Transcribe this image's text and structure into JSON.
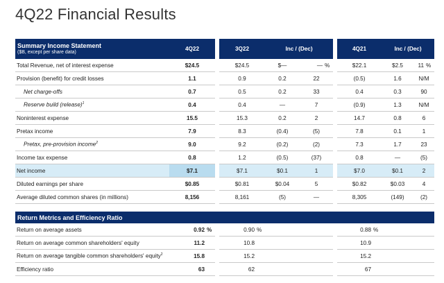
{
  "title": "4Q22 Financial Results",
  "income": {
    "header": {
      "label": "Summary Income Statement",
      "sublabel": "($B, except per share data)",
      "col_4q22": "4Q22",
      "col_3q22": "3Q22",
      "col_inc1": "Inc / (Dec)",
      "col_4q21": "4Q21",
      "col_inc2": "Inc / (Dec)"
    },
    "rows": [
      {
        "label": "Total Revenue, net of interest expense",
        "v1": "$24.5",
        "v2": "$24.5",
        "d1": "$—",
        "p1": "—",
        "pct1": "%",
        "v3": "$22.1",
        "d2": "$2.5",
        "p2": "11",
        "pct2": "%"
      },
      {
        "label": "Provision (benefit) for credit losses",
        "v1": "1.1",
        "v2": "0.9",
        "d1": "0.2",
        "p1": "22",
        "v3": "(0.5)",
        "d2": "1.6",
        "p2": "N/M"
      },
      {
        "label": "Net charge-offs",
        "v1": "0.7",
        "v2": "0.5",
        "d1": "0.2",
        "p1": "33",
        "v3": "0.4",
        "d2": "0.3",
        "p2": "90"
      },
      {
        "label": "Reserve build (release)",
        "sup": "1",
        "v1": "0.4",
        "v2": "0.4",
        "d1": "—",
        "p1": "7",
        "v3": "(0.9)",
        "d2": "1.3",
        "p2": "N/M"
      },
      {
        "label": "Noninterest expense",
        "v1": "15.5",
        "v2": "15.3",
        "d1": "0.2",
        "p1": "2",
        "v3": "14.7",
        "d2": "0.8",
        "p2": "6"
      },
      {
        "label": "Pretax income",
        "v1": "7.9",
        "v2": "8.3",
        "d1": "(0.4)",
        "p1": "(5)",
        "v3": "7.8",
        "d2": "0.1",
        "p2": "1"
      },
      {
        "label": "Pretax, pre-provision income",
        "sup": "2",
        "v1": "9.0",
        "v2": "9.2",
        "d1": "(0.2)",
        "p1": "(2)",
        "v3": "7.3",
        "d2": "1.7",
        "p2": "23"
      },
      {
        "label": "Income tax expense",
        "v1": "0.8",
        "v2": "1.2",
        "d1": "(0.5)",
        "p1": "(37)",
        "v3": "0.8",
        "d2": "—",
        "p2": "(5)"
      },
      {
        "label": "Net income",
        "v1": "$7.1",
        "v2": "$7.1",
        "d1": "$0.1",
        "p1": "1",
        "v3": "$7.0",
        "d2": "$0.1",
        "p2": "2"
      },
      {
        "label": "Diluted earnings per share",
        "v1": "$0.85",
        "v2": "$0.81",
        "d1": "$0.04",
        "p1": "5",
        "v3": "$0.82",
        "d2": "$0.03",
        "p2": "4"
      },
      {
        "label": "Average diluted common shares (in millions)",
        "v1": "8,156",
        "v2": "8,161",
        "d1": "(5)",
        "p1": "—",
        "v3": "8,305",
        "d2": "(149)",
        "p2": "(2)"
      }
    ]
  },
  "metrics": {
    "header": {
      "label": "Return Metrics and Efficiency Ratio"
    },
    "rows": [
      {
        "label": "Return on average assets",
        "v1": "0.92",
        "pct1": "%",
        "v2": "0.90",
        "pct2": "%",
        "v3": "0.88",
        "pct3": "%"
      },
      {
        "label": "Return on average common shareholders' equity",
        "v1": "11.2",
        "v2": "10.8",
        "v3": "10.9"
      },
      {
        "label": "Return on average tangible common shareholders' equity",
        "sup": "2",
        "v1": "15.8",
        "v2": "15.2",
        "v3": "15.2"
      },
      {
        "label": "Efficiency ratio",
        "v1": "63",
        "v2": "62",
        "v3": "67"
      }
    ]
  }
}
